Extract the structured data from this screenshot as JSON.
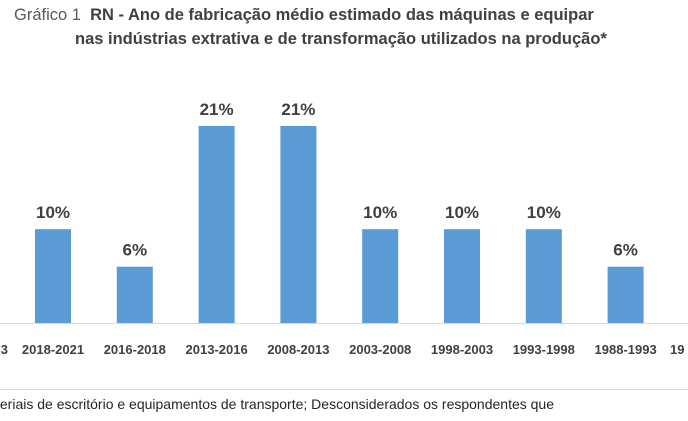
{
  "chart_data": {
    "type": "bar",
    "title_prefix": "Gráfico 1",
    "title_line1": "RN - Ano de fabricação médio estimado das máquinas e equipar",
    "title_line2": "nas indústrias extrativa e de transformação utilizados na produção*",
    "categories": [
      "3",
      "2018-2021",
      "2016-2018",
      "2013-2016",
      "2008-2013",
      "2003-2008",
      "1998-2003",
      "1993-1998",
      "1988-1993",
      "19"
    ],
    "values": [
      null,
      10,
      6,
      21,
      21,
      10,
      10,
      10,
      6,
      null
    ],
    "data_labels": [
      "",
      "10%",
      "6%",
      "21%",
      "21%",
      "10%",
      "10%",
      "10%",
      "6%",
      ""
    ],
    "ylim": [
      0,
      25
    ],
    "bar_color": "#5B9BD5",
    "grid": false,
    "footnote": "teriais de escritório e equipamentos de transporte; Desconsiderados os respondentes que"
  }
}
